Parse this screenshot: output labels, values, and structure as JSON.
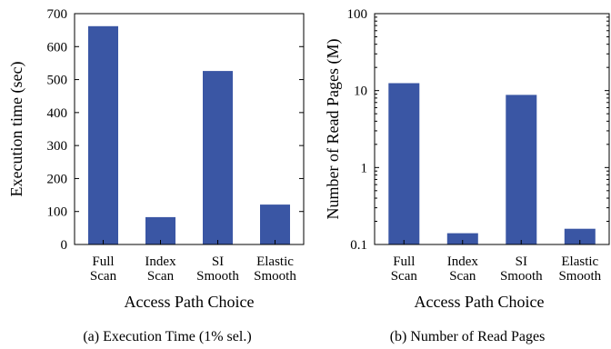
{
  "chart_data": [
    {
      "type": "bar",
      "categories": [
        [
          "Full",
          "Scan"
        ],
        [
          "Index",
          "Scan"
        ],
        [
          "SI",
          "Smooth"
        ],
        [
          "Elastic",
          "Smooth"
        ]
      ],
      "values": [
        662,
        83,
        526,
        121
      ],
      "xlabel": "Access Path Choice",
      "ylabel": "Execution time (sec)",
      "ylim": [
        0,
        700
      ],
      "yticks": [
        0,
        100,
        200,
        300,
        400,
        500,
        600,
        700
      ],
      "caption": "(a) Execution Time (1% sel.)",
      "bar_color": "#3a56a4",
      "grid": false
    },
    {
      "type": "bar",
      "categories": [
        [
          "Full",
          "Scan"
        ],
        [
          "Index",
          "Scan"
        ],
        [
          "SI",
          "Smooth"
        ],
        [
          "Elastic",
          "Smooth"
        ]
      ],
      "values": [
        12.5,
        0.14,
        8.8,
        0.16
      ],
      "xlabel": "Access Path Choice",
      "ylabel": "Number of Read Pages (M)",
      "ylim": [
        0.1,
        100
      ],
      "yscale": "log",
      "yticks": [
        0.1,
        1,
        10,
        100
      ],
      "ytick_labels": [
        "0.1",
        "1",
        "10",
        "100"
      ],
      "caption": "(b) Number of Read Pages",
      "bar_color": "#3a56a4",
      "grid": false
    }
  ]
}
